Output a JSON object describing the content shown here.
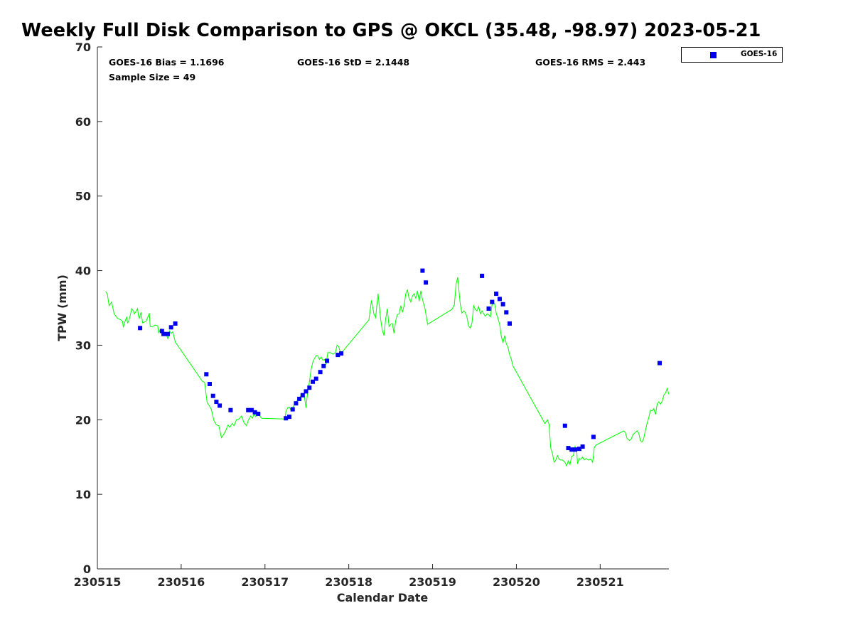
{
  "title": "Weekly Full Disk Comparison to GPS @ OKCL (35.48, -98.97) 2023-05-21",
  "stats": {
    "bias": "GOES-16 Bias = 1.1696",
    "std": "GOES-16 StD = 2.1448",
    "rms": "GOES-16 RMS = 2.443",
    "sample_size": "Sample Size = 49"
  },
  "colors": {
    "goes": "#0000ee",
    "gps": "#00ff00",
    "axis": "#262626"
  },
  "chart_data": {
    "type": "scatter",
    "title": "Weekly Full Disk Comparison to GPS @ OKCL (35.48, -98.97) 2023-05-21",
    "xlabel": "Calendar Date",
    "ylabel": "TPW (mm)",
    "x_ticks": [
      "230515",
      "230516",
      "230517",
      "230518",
      "230519",
      "230520",
      "230521"
    ],
    "y_ticks": [
      0,
      10,
      20,
      30,
      40,
      50,
      60,
      70
    ],
    "xlim": [
      0,
      6.82
    ],
    "ylim": [
      0,
      70
    ],
    "grid": false,
    "legend": "outside-top-right",
    "series": [
      {
        "name": "GOES-16",
        "marker": "square",
        "color": "#0000ee",
        "points": [
          [
            0.51,
            32.3
          ],
          [
            0.77,
            31.9
          ],
          [
            0.79,
            31.5
          ],
          [
            0.84,
            31.5
          ],
          [
            0.88,
            32.4
          ],
          [
            0.93,
            32.9
          ],
          [
            1.3,
            26.1
          ],
          [
            1.34,
            24.8
          ],
          [
            1.38,
            23.2
          ],
          [
            1.42,
            22.4
          ],
          [
            1.46,
            21.9
          ],
          [
            1.59,
            21.3
          ],
          [
            1.8,
            21.3
          ],
          [
            1.84,
            21.3
          ],
          [
            1.88,
            21.0
          ],
          [
            1.92,
            20.8
          ],
          [
            2.25,
            20.2
          ],
          [
            2.29,
            20.4
          ],
          [
            2.33,
            21.4
          ],
          [
            2.37,
            22.2
          ],
          [
            2.41,
            22.8
          ],
          [
            2.45,
            23.3
          ],
          [
            2.49,
            23.8
          ],
          [
            2.53,
            24.3
          ],
          [
            2.57,
            25.1
          ],
          [
            2.61,
            25.5
          ],
          [
            2.66,
            26.4
          ],
          [
            2.7,
            27.2
          ],
          [
            2.74,
            27.9
          ],
          [
            2.87,
            28.7
          ],
          [
            2.91,
            28.9
          ],
          [
            3.88,
            40.0
          ],
          [
            3.92,
            38.4
          ],
          [
            4.59,
            39.3
          ],
          [
            4.67,
            34.9
          ],
          [
            4.71,
            35.8
          ],
          [
            4.76,
            36.9
          ],
          [
            4.8,
            36.2
          ],
          [
            4.84,
            35.5
          ],
          [
            4.88,
            34.4
          ],
          [
            4.92,
            32.9
          ],
          [
            5.58,
            19.2
          ],
          [
            5.62,
            16.2
          ],
          [
            5.66,
            16.0
          ],
          [
            5.7,
            16.0
          ],
          [
            5.75,
            16.1
          ],
          [
            5.79,
            16.4
          ],
          [
            5.92,
            17.7
          ],
          [
            6.71,
            27.6
          ]
        ]
      },
      {
        "name": "GPS",
        "type": "line",
        "color": "#00ff00",
        "points": [
          [
            0.1,
            37.2
          ],
          [
            0.12,
            36.8
          ],
          [
            0.14,
            35.3
          ],
          [
            0.17,
            35.8
          ],
          [
            0.2,
            34.2
          ],
          [
            0.24,
            33.6
          ],
          [
            0.28,
            33.4
          ],
          [
            0.3,
            33.2
          ],
          [
            0.31,
            32.4
          ],
          [
            0.33,
            33.2
          ],
          [
            0.35,
            33.8
          ],
          [
            0.36,
            33.0
          ],
          [
            0.37,
            33.1
          ],
          [
            0.39,
            33.9
          ],
          [
            0.41,
            34.9
          ],
          [
            0.43,
            34.6
          ],
          [
            0.44,
            34.2
          ],
          [
            0.46,
            34.5
          ],
          [
            0.48,
            34.9
          ],
          [
            0.49,
            33.9
          ],
          [
            0.5,
            33.6
          ],
          [
            0.52,
            34.4
          ],
          [
            0.54,
            33.0
          ],
          [
            0.56,
            33.1
          ],
          [
            0.58,
            33.2
          ],
          [
            0.6,
            33.7
          ],
          [
            0.62,
            34.3
          ],
          [
            0.63,
            32.5
          ],
          [
            0.66,
            32.5
          ],
          [
            0.69,
            32.7
          ],
          [
            0.72,
            32.6
          ],
          [
            0.73,
            31.7
          ],
          [
            0.76,
            32.2
          ],
          [
            0.78,
            31.4
          ],
          [
            0.8,
            31.7
          ],
          [
            0.82,
            31.5
          ],
          [
            0.84,
            30.9
          ],
          [
            0.86,
            31.9
          ],
          [
            0.88,
            31.6
          ],
          [
            0.9,
            31.8
          ],
          [
            0.93,
            30.4
          ],
          [
            0.95,
            30.1
          ],
          [
            1.25,
            25.2
          ],
          [
            1.28,
            25.0
          ],
          [
            1.31,
            22.3
          ],
          [
            1.34,
            21.8
          ],
          [
            1.36,
            21.4
          ],
          [
            1.39,
            19.9
          ],
          [
            1.42,
            19.3
          ],
          [
            1.45,
            19.2
          ],
          [
            1.48,
            17.6
          ],
          [
            1.5,
            17.9
          ],
          [
            1.53,
            18.5
          ],
          [
            1.56,
            19.3
          ],
          [
            1.58,
            19.0
          ],
          [
            1.61,
            19.5
          ],
          [
            1.63,
            19.2
          ],
          [
            1.66,
            20.0
          ],
          [
            1.69,
            20.1
          ],
          [
            1.72,
            20.5
          ],
          [
            1.75,
            19.6
          ],
          [
            1.78,
            19.2
          ],
          [
            1.8,
            19.9
          ],
          [
            1.83,
            20.5
          ],
          [
            1.85,
            20.2
          ],
          [
            1.87,
            20.8
          ],
          [
            1.89,
            20.4
          ],
          [
            1.91,
            21.0
          ],
          [
            1.93,
            20.6
          ],
          [
            1.96,
            20.2
          ],
          [
            2.24,
            20.1
          ],
          [
            2.25,
            21.1
          ],
          [
            2.27,
            21.6
          ],
          [
            2.29,
            21.7
          ],
          [
            2.31,
            21.3
          ],
          [
            2.33,
            21.6
          ],
          [
            2.35,
            22.0
          ],
          [
            2.37,
            22.4
          ],
          [
            2.39,
            22.7
          ],
          [
            2.41,
            23.0
          ],
          [
            2.43,
            23.2
          ],
          [
            2.45,
            23.5
          ],
          [
            2.47,
            23.1
          ],
          [
            2.49,
            21.6
          ],
          [
            2.51,
            23.8
          ],
          [
            2.53,
            25.1
          ],
          [
            2.55,
            26.7
          ],
          [
            2.57,
            27.7
          ],
          [
            2.59,
            28.2
          ],
          [
            2.61,
            28.6
          ],
          [
            2.63,
            28.6
          ],
          [
            2.65,
            28.1
          ],
          [
            2.67,
            28.4
          ],
          [
            2.69,
            28.0
          ],
          [
            2.71,
            28.1
          ],
          [
            2.73,
            27.5
          ],
          [
            2.75,
            29.0
          ],
          [
            2.78,
            29.0
          ],
          [
            2.81,
            28.8
          ],
          [
            2.84,
            29.0
          ],
          [
            2.86,
            30.0
          ],
          [
            2.88,
            29.8
          ],
          [
            2.9,
            29.0
          ],
          [
            2.93,
            29.2
          ],
          [
            3.24,
            33.4
          ],
          [
            3.27,
            36.0
          ],
          [
            3.3,
            34.2
          ],
          [
            3.32,
            33.7
          ],
          [
            3.35,
            36.9
          ],
          [
            3.38,
            33.5
          ],
          [
            3.4,
            32.0
          ],
          [
            3.42,
            31.3
          ],
          [
            3.44,
            33.5
          ],
          [
            3.46,
            34.9
          ],
          [
            3.48,
            32.5
          ],
          [
            3.5,
            32.8
          ],
          [
            3.52,
            32.9
          ],
          [
            3.54,
            31.6
          ],
          [
            3.56,
            33.3
          ],
          [
            3.58,
            34.1
          ],
          [
            3.6,
            34.2
          ],
          [
            3.62,
            35.3
          ],
          [
            3.64,
            34.4
          ],
          [
            3.66,
            35.3
          ],
          [
            3.68,
            36.9
          ],
          [
            3.7,
            37.4
          ],
          [
            3.72,
            36.3
          ],
          [
            3.74,
            35.8
          ],
          [
            3.76,
            36.6
          ],
          [
            3.78,
            36.9
          ],
          [
            3.8,
            36.3
          ],
          [
            3.82,
            37.3
          ],
          [
            3.84,
            35.9
          ],
          [
            3.86,
            37.3
          ],
          [
            3.88,
            36.1
          ],
          [
            3.91,
            34.9
          ],
          [
            3.94,
            32.8
          ],
          [
            3.94,
            32.8
          ],
          [
            4.23,
            34.8
          ],
          [
            4.26,
            35.4
          ],
          [
            4.28,
            38.2
          ],
          [
            4.3,
            39.1
          ],
          [
            4.33,
            35.5
          ],
          [
            4.35,
            34.3
          ],
          [
            4.37,
            34.6
          ],
          [
            4.39,
            34.4
          ],
          [
            4.41,
            33.8
          ],
          [
            4.43,
            32.6
          ],
          [
            4.45,
            32.3
          ],
          [
            4.47,
            33.0
          ],
          [
            4.49,
            35.3
          ],
          [
            4.51,
            34.8
          ],
          [
            4.53,
            34.6
          ],
          [
            4.55,
            35.2
          ],
          [
            4.57,
            34.2
          ],
          [
            4.59,
            34.6
          ],
          [
            4.61,
            34.2
          ],
          [
            4.63,
            33.9
          ],
          [
            4.65,
            34.2
          ],
          [
            4.67,
            34.1
          ],
          [
            4.69,
            33.8
          ],
          [
            4.71,
            35.5
          ],
          [
            4.74,
            35.6
          ],
          [
            4.76,
            34.3
          ],
          [
            4.78,
            33.6
          ],
          [
            4.8,
            32.8
          ],
          [
            4.82,
            31.2
          ],
          [
            4.84,
            30.3
          ],
          [
            4.86,
            31.3
          ],
          [
            4.88,
            30.2
          ],
          [
            4.9,
            29.7
          ],
          [
            4.92,
            28.7
          ],
          [
            4.94,
            28.1
          ],
          [
            4.96,
            27.2
          ],
          [
            5.34,
            19.5
          ],
          [
            5.37,
            20.0
          ],
          [
            5.39,
            19.4
          ],
          [
            5.41,
            16.2
          ],
          [
            5.43,
            15.5
          ],
          [
            5.45,
            14.3
          ],
          [
            5.47,
            14.6
          ],
          [
            5.49,
            15.2
          ],
          [
            5.51,
            14.7
          ],
          [
            5.53,
            14.6
          ],
          [
            5.55,
            14.6
          ],
          [
            5.58,
            14.3
          ],
          [
            5.6,
            13.8
          ],
          [
            5.62,
            14.5
          ],
          [
            5.64,
            14.0
          ],
          [
            5.66,
            15.1
          ],
          [
            5.68,
            15.2
          ],
          [
            5.7,
            16.4
          ],
          [
            5.72,
            15.8
          ],
          [
            5.73,
            14.1
          ],
          [
            5.75,
            14.8
          ],
          [
            5.77,
            14.7
          ],
          [
            5.79,
            15.0
          ],
          [
            5.81,
            14.6
          ],
          [
            5.83,
            14.8
          ],
          [
            5.86,
            14.6
          ],
          [
            5.89,
            14.7
          ],
          [
            5.91,
            14.3
          ],
          [
            5.93,
            16.3
          ],
          [
            5.95,
            16.6
          ],
          [
            6.28,
            18.5
          ],
          [
            6.3,
            18.3
          ],
          [
            6.32,
            17.5
          ],
          [
            6.35,
            17.2
          ],
          [
            6.37,
            17.4
          ],
          [
            6.39,
            18.0
          ],
          [
            6.42,
            18.3
          ],
          [
            6.44,
            18.5
          ],
          [
            6.46,
            18.2
          ],
          [
            6.48,
            17.2
          ],
          [
            6.5,
            17.0
          ],
          [
            6.52,
            17.5
          ],
          [
            6.54,
            18.6
          ],
          [
            6.56,
            19.5
          ],
          [
            6.58,
            20.3
          ],
          [
            6.6,
            21.3
          ],
          [
            6.62,
            21.2
          ],
          [
            6.64,
            21.5
          ],
          [
            6.66,
            20.7
          ],
          [
            6.68,
            22.1
          ],
          [
            6.7,
            22.4
          ],
          [
            6.72,
            22.1
          ],
          [
            6.74,
            22.5
          ],
          [
            6.76,
            23.3
          ],
          [
            6.78,
            23.6
          ],
          [
            6.8,
            24.2
          ],
          [
            6.82,
            23.4
          ]
        ]
      }
    ]
  }
}
